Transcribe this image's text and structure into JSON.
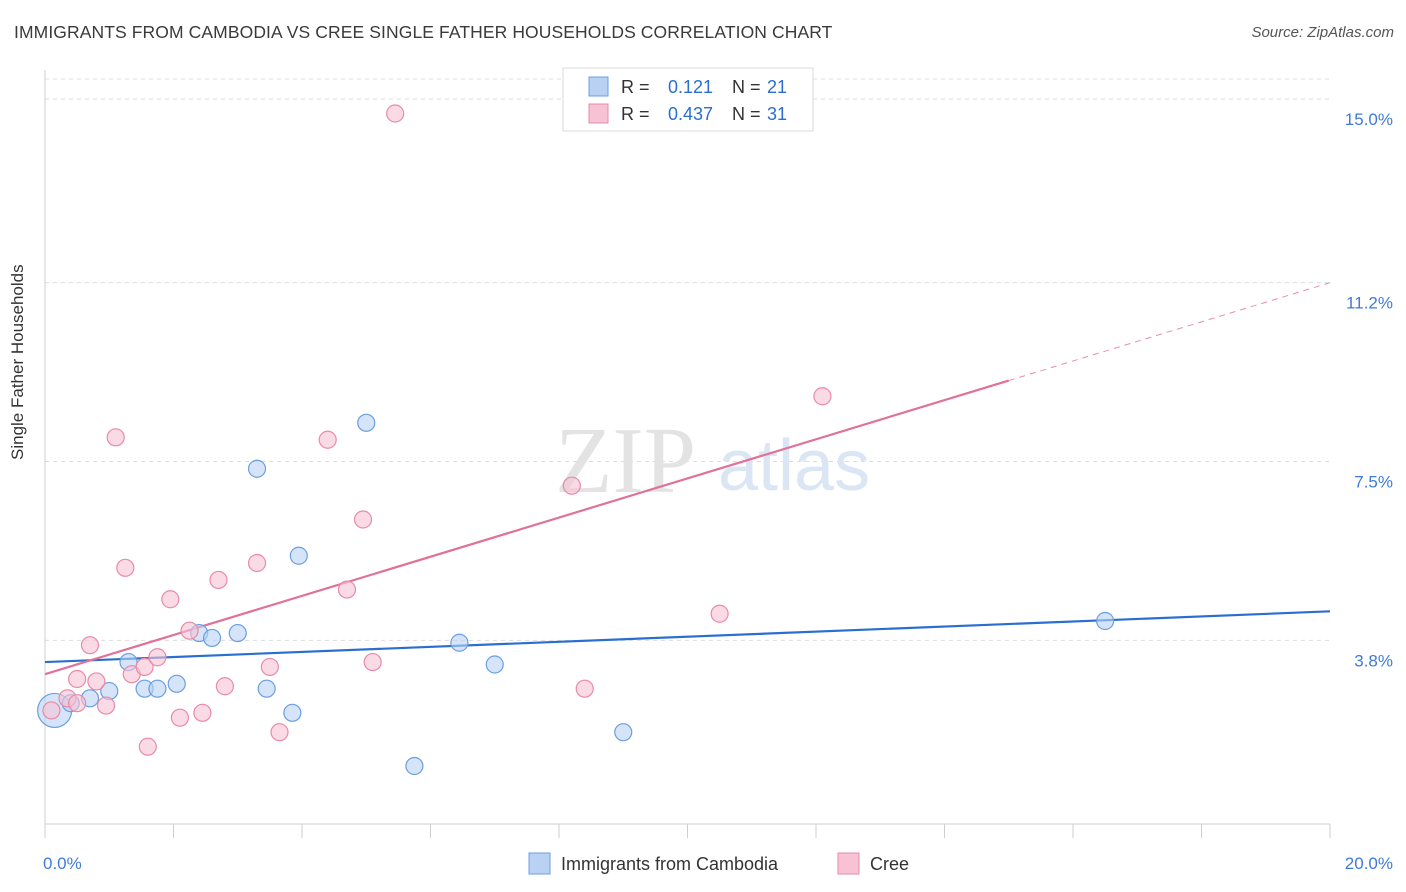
{
  "chart_data": {
    "type": "scatter",
    "title": "IMMIGRANTS FROM CAMBODIA VS CREE SINGLE FATHER HOUSEHOLDS CORRELATION CHART",
    "source": "Source: ZipAtlas.com",
    "ylabel": "Single Father Households",
    "xlim": [
      0,
      20
    ],
    "ylim": [
      0,
      15.6
    ],
    "x_ticks": [
      {
        "value": 0,
        "label": "0.0%"
      },
      {
        "value": 20,
        "label": "20.0%"
      }
    ],
    "y_ticks": [
      {
        "value": 3.8,
        "label": "3.8%"
      },
      {
        "value": 7.5,
        "label": "7.5%"
      },
      {
        "value": 11.2,
        "label": "11.2%"
      },
      {
        "value": 15.0,
        "label": "15.0%"
      }
    ],
    "watermark": {
      "part1": "ZIP",
      "part2": "atlas"
    },
    "legend_top": [
      {
        "r_label": "R =",
        "r_value": "0.121",
        "n_label": "N =",
        "n_value": "21"
      },
      {
        "r_label": "R =",
        "r_value": "0.437",
        "n_label": "N =",
        "n_value": "31"
      }
    ],
    "series": [
      {
        "name": "Immigrants from Cambodia",
        "color": "#6a9fe0",
        "fill": "#b9d2f3",
        "line_color": "#2a6fcf",
        "trend": {
          "x0": 0,
          "y0": 3.35,
          "x1": 20,
          "y1": 4.4,
          "solid_until": 20
        },
        "points": [
          {
            "x": 0.15,
            "y": 2.35,
            "big": true
          },
          {
            "x": 0.4,
            "y": 2.5
          },
          {
            "x": 0.7,
            "y": 2.6
          },
          {
            "x": 1.0,
            "y": 2.75
          },
          {
            "x": 1.3,
            "y": 3.35
          },
          {
            "x": 1.55,
            "y": 2.8
          },
          {
            "x": 1.75,
            "y": 2.8
          },
          {
            "x": 2.05,
            "y": 2.9
          },
          {
            "x": 2.4,
            "y": 3.95
          },
          {
            "x": 2.6,
            "y": 3.85
          },
          {
            "x": 3.0,
            "y": 3.95
          },
          {
            "x": 3.3,
            "y": 7.35
          },
          {
            "x": 3.45,
            "y": 2.8
          },
          {
            "x": 3.85,
            "y": 2.3
          },
          {
            "x": 3.95,
            "y": 5.55
          },
          {
            "x": 5.0,
            "y": 8.3
          },
          {
            "x": 5.75,
            "y": 1.2
          },
          {
            "x": 6.45,
            "y": 3.75
          },
          {
            "x": 7.0,
            "y": 3.3
          },
          {
            "x": 9.0,
            "y": 1.9
          },
          {
            "x": 16.5,
            "y": 4.2
          }
        ]
      },
      {
        "name": "Cree",
        "color": "#e98aa8",
        "fill": "#f7c3d4",
        "line_color": "#e0719a",
        "trend": {
          "x0": 0,
          "y0": 3.1,
          "x1": 20,
          "y1": 11.2,
          "solid_until": 15.0
        },
        "points": [
          {
            "x": 0.1,
            "y": 2.35
          },
          {
            "x": 0.35,
            "y": 2.6
          },
          {
            "x": 0.5,
            "y": 2.5
          },
          {
            "x": 0.5,
            "y": 3.0
          },
          {
            "x": 0.7,
            "y": 3.7
          },
          {
            "x": 0.8,
            "y": 2.95
          },
          {
            "x": 0.95,
            "y": 2.45
          },
          {
            "x": 1.1,
            "y": 8.0
          },
          {
            "x": 1.25,
            "y": 5.3
          },
          {
            "x": 1.35,
            "y": 3.1
          },
          {
            "x": 1.55,
            "y": 3.25
          },
          {
            "x": 1.6,
            "y": 1.6
          },
          {
            "x": 1.75,
            "y": 3.45
          },
          {
            "x": 1.95,
            "y": 4.65
          },
          {
            "x": 2.1,
            "y": 2.2
          },
          {
            "x": 2.25,
            "y": 4.0
          },
          {
            "x": 2.45,
            "y": 2.3
          },
          {
            "x": 2.7,
            "y": 5.05
          },
          {
            "x": 2.8,
            "y": 2.85
          },
          {
            "x": 3.3,
            "y": 5.4
          },
          {
            "x": 3.5,
            "y": 3.25
          },
          {
            "x": 3.65,
            "y": 1.9
          },
          {
            "x": 4.4,
            "y": 7.95
          },
          {
            "x": 4.7,
            "y": 4.85
          },
          {
            "x": 4.95,
            "y": 6.3
          },
          {
            "x": 5.1,
            "y": 3.35
          },
          {
            "x": 5.45,
            "y": 14.7
          },
          {
            "x": 8.2,
            "y": 7.0
          },
          {
            "x": 8.4,
            "y": 2.8
          },
          {
            "x": 10.5,
            "y": 4.35
          },
          {
            "x": 12.1,
            "y": 8.85
          }
        ]
      }
    ]
  }
}
